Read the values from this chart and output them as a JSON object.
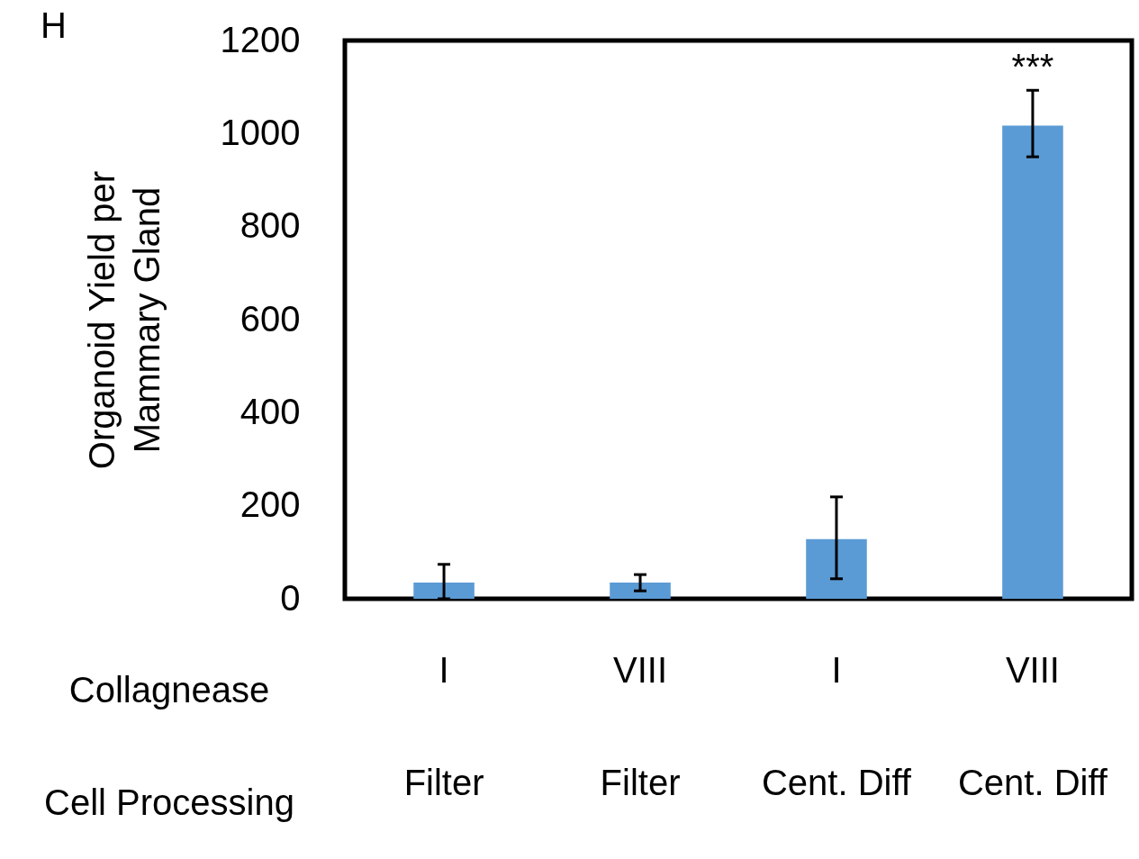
{
  "chart_data": {
    "type": "bar",
    "ylabel": "Organoid Yield per Mammary Gland",
    "categories": [
      "I\nFilter",
      "VIII\nFilter",
      "I\nCent. Diff",
      "VIII\nCent. Diff"
    ],
    "values": [
      35,
      35,
      128,
      1017
    ],
    "errors": [
      [
        0,
        74
      ],
      [
        17,
        52
      ],
      [
        43,
        219
      ],
      [
        950,
        1093
      ]
    ],
    "color": "#5b9bd5",
    "ylim": [
      0,
      1200
    ],
    "yticks": [
      0,
      200,
      400,
      600,
      800,
      1000,
      1200
    ],
    "annotations": [
      "H",
      "Collagnease",
      "Cell Processing",
      {
        "text": "***",
        "x": "VIII\nCent. Diff",
        "y": 1093
      }
    ]
  }
}
